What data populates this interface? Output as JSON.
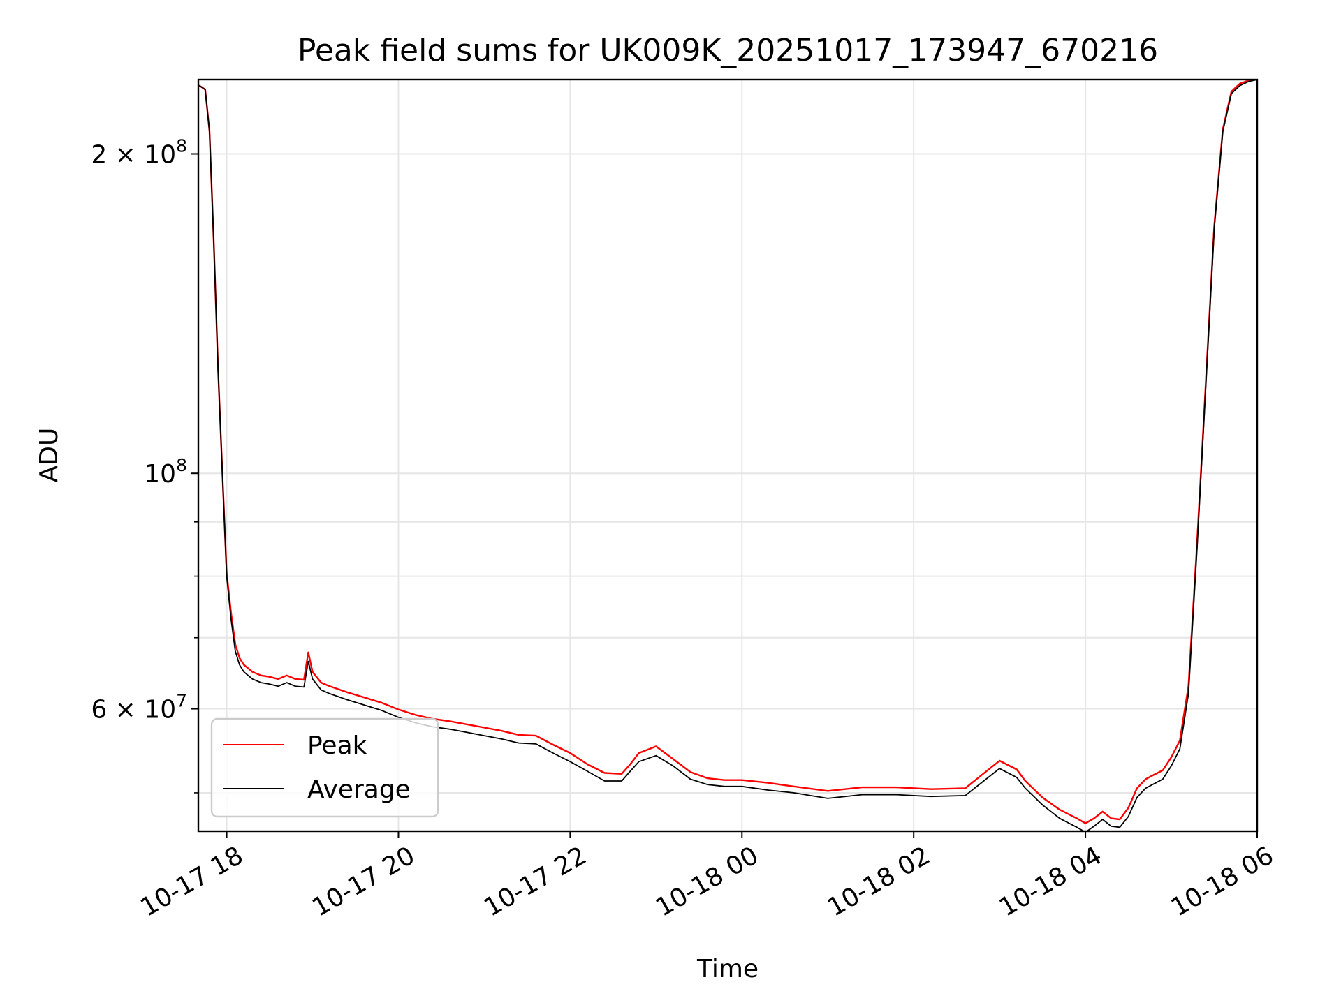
{
  "chart_data": {
    "type": "line",
    "title": "Peak field sums for UK009K_20251017_173947_670216",
    "xlabel": "Time",
    "ylabel": "ADU",
    "yscale": "log",
    "xlim_hours": [
      -0.33,
      12.0
    ],
    "ylim": [
      46000000,
      235000000
    ],
    "grid": true,
    "x_ticks": [
      {
        "label": "10-17 18",
        "hour": 0
      },
      {
        "label": "10-17 20",
        "hour": 2
      },
      {
        "label": "10-17 22",
        "hour": 4
      },
      {
        "label": "10-18 00",
        "hour": 6
      },
      {
        "label": "10-18 02",
        "hour": 8
      },
      {
        "label": "10-18 04",
        "hour": 10
      },
      {
        "label": "10-18 06",
        "hour": 12
      }
    ],
    "y_ticks": [
      {
        "label": "2 × 10⁸",
        "base": "2 × 10",
        "exp": "8",
        "value": 200000000
      },
      {
        "label": "10⁸",
        "base": "10",
        "exp": "8",
        "value": 100000000
      },
      {
        "label": "6 × 10⁷",
        "base": "6 × 10",
        "exp": "7",
        "value": 60000000
      }
    ],
    "y_minor_ticks": [
      50000000,
      70000000,
      80000000,
      90000000
    ],
    "legend": {
      "placement": "lower-left",
      "entries": [
        {
          "name": "Peak",
          "color": "#ff0000"
        },
        {
          "name": "Average",
          "color": "#000000"
        }
      ]
    },
    "series": [
      {
        "name": "Average",
        "color": "#000000",
        "x_hours": [
          -0.32,
          -0.25,
          -0.2,
          -0.15,
          -0.1,
          -0.05,
          0.0,
          0.05,
          0.1,
          0.15,
          0.2,
          0.25,
          0.3,
          0.4,
          0.5,
          0.6,
          0.7,
          0.8,
          0.9,
          0.95,
          1.0,
          1.1,
          1.2,
          1.4,
          1.6,
          1.8,
          2.0,
          2.2,
          2.4,
          2.6,
          2.8,
          3.0,
          3.2,
          3.4,
          3.6,
          3.8,
          4.0,
          4.2,
          4.4,
          4.6,
          4.7,
          4.8,
          5.0,
          5.2,
          5.4,
          5.6,
          5.8,
          6.0,
          6.3,
          6.6,
          7.0,
          7.4,
          7.8,
          8.2,
          8.6,
          9.0,
          9.2,
          9.3,
          9.5,
          9.7,
          9.9,
          10.0,
          10.1,
          10.2,
          10.3,
          10.4,
          10.5,
          10.6,
          10.7,
          10.8,
          10.9,
          11.0,
          11.1,
          11.2,
          11.3,
          11.4,
          11.5,
          11.6,
          11.7,
          11.8,
          11.9,
          12.0
        ],
        "y": [
          232000000,
          230000000,
          210000000,
          165000000,
          125000000,
          100000000,
          80000000,
          73000000,
          68000000,
          66000000,
          65000000,
          64500000,
          64000000,
          63500000,
          63300000,
          63000000,
          63500000,
          63000000,
          62900000,
          66500000,
          64000000,
          62500000,
          62000000,
          61200000,
          60500000,
          59800000,
          58900000,
          58200000,
          57700000,
          57400000,
          57000000,
          56600000,
          56200000,
          55700000,
          55600000,
          54500000,
          53500000,
          52400000,
          51300000,
          51300000,
          52400000,
          53500000,
          54200000,
          53000000,
          51500000,
          50900000,
          50700000,
          50700000,
          50300000,
          50000000,
          49400000,
          49800000,
          49800000,
          49600000,
          49700000,
          52700000,
          51700000,
          50500000,
          48700000,
          47300000,
          46400000,
          45900000,
          46500000,
          47200000,
          46500000,
          46400000,
          47500000,
          49500000,
          50500000,
          51000000,
          51500000,
          53000000,
          55000000,
          62000000,
          85000000,
          120000000,
          170000000,
          210000000,
          228000000,
          232000000,
          234000000,
          235000000
        ]
      },
      {
        "name": "Peak",
        "color": "#ff0000",
        "x_hours": [
          -0.32,
          -0.25,
          -0.2,
          -0.15,
          -0.1,
          -0.05,
          0.0,
          0.05,
          0.1,
          0.15,
          0.2,
          0.25,
          0.3,
          0.4,
          0.5,
          0.6,
          0.7,
          0.8,
          0.9,
          0.95,
          1.0,
          1.1,
          1.2,
          1.4,
          1.6,
          1.8,
          2.0,
          2.2,
          2.4,
          2.6,
          2.8,
          3.0,
          3.2,
          3.4,
          3.6,
          3.8,
          4.0,
          4.2,
          4.4,
          4.6,
          4.7,
          4.8,
          5.0,
          5.2,
          5.4,
          5.6,
          5.8,
          6.0,
          6.3,
          6.6,
          7.0,
          7.4,
          7.8,
          8.2,
          8.6,
          9.0,
          9.2,
          9.3,
          9.5,
          9.7,
          9.9,
          10.0,
          10.1,
          10.2,
          10.3,
          10.4,
          10.5,
          10.6,
          10.7,
          10.8,
          10.9,
          11.0,
          11.1,
          11.2,
          11.3,
          11.4,
          11.5,
          11.6,
          11.7,
          11.8,
          11.9,
          12.0
        ],
        "y": [
          232000000,
          230000000,
          210000000,
          165000000,
          125000000,
          100000000,
          80500000,
          74000000,
          69000000,
          67000000,
          66000000,
          65500000,
          65000000,
          64500000,
          64300000,
          64000000,
          64500000,
          64000000,
          63900000,
          67800000,
          65000000,
          63500000,
          63000000,
          62200000,
          61500000,
          60800000,
          59900000,
          59200000,
          58700000,
          58400000,
          58000000,
          57600000,
          57200000,
          56700000,
          56600000,
          55500000,
          54500000,
          53200000,
          52200000,
          52100000,
          53200000,
          54500000,
          55300000,
          53800000,
          52300000,
          51600000,
          51400000,
          51400000,
          51100000,
          50700000,
          50200000,
          50600000,
          50600000,
          50400000,
          50500000,
          53600000,
          52600000,
          51300000,
          49500000,
          48200000,
          47300000,
          46800000,
          47300000,
          48000000,
          47300000,
          47200000,
          48400000,
          50500000,
          51500000,
          52000000,
          52500000,
          54000000,
          56000000,
          63000000,
          86000000,
          121000000,
          171000000,
          211000000,
          229000000,
          233000000,
          234500000,
          235000000
        ]
      }
    ]
  }
}
